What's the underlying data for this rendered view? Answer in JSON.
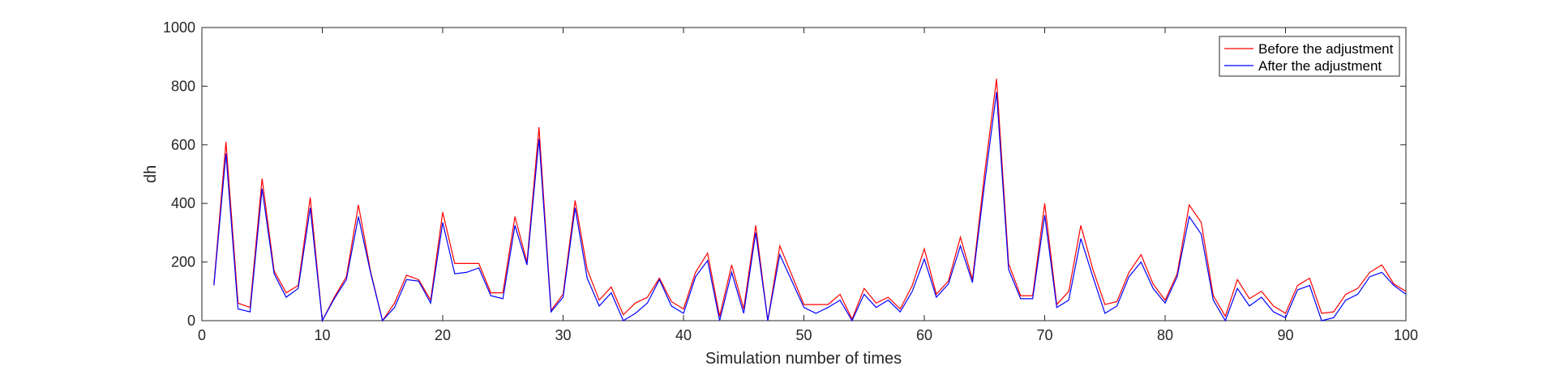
{
  "chart_data": {
    "type": "line",
    "xlabel": "Simulation number of times",
    "ylabel": "dh",
    "xlim": [
      0,
      100
    ],
    "ylim": [
      0,
      1000
    ],
    "xticks": [
      0,
      10,
      20,
      30,
      40,
      50,
      60,
      70,
      80,
      90,
      100
    ],
    "yticks": [
      0,
      200,
      400,
      600,
      800,
      1000
    ],
    "grid": false,
    "legend_position": "top-right",
    "x": [
      1,
      2,
      3,
      4,
      5,
      6,
      7,
      8,
      9,
      10,
      11,
      12,
      13,
      14,
      15,
      16,
      17,
      18,
      19,
      20,
      21,
      22,
      23,
      24,
      25,
      26,
      27,
      28,
      29,
      30,
      31,
      32,
      33,
      34,
      35,
      36,
      37,
      38,
      39,
      40,
      41,
      42,
      43,
      44,
      45,
      46,
      47,
      48,
      49,
      50,
      51,
      52,
      53,
      54,
      55,
      56,
      57,
      58,
      59,
      60,
      61,
      62,
      63,
      64,
      65,
      66,
      67,
      68,
      69,
      70,
      71,
      72,
      73,
      74,
      75,
      76,
      77,
      78,
      79,
      80,
      81,
      82,
      83,
      84,
      85,
      86,
      87,
      88,
      89,
      90,
      91,
      92,
      93,
      94,
      95,
      96,
      97,
      98,
      99,
      100
    ],
    "series": [
      {
        "name": "Before the adjustment",
        "color": "#ff0000",
        "values": [
          125,
          610,
          60,
          45,
          485,
          170,
          95,
          120,
          420,
          0,
          80,
          150,
          395,
          170,
          0,
          60,
          155,
          140,
          70,
          370,
          195,
          195,
          195,
          95,
          95,
          355,
          200,
          660,
          35,
          90,
          410,
          175,
          70,
          115,
          20,
          60,
          80,
          145,
          65,
          40,
          165,
          230,
          15,
          190,
          40,
          325,
          0,
          255,
          155,
          55,
          55,
          55,
          90,
          5,
          110,
          60,
          80,
          40,
          120,
          245,
          90,
          135,
          285,
          140,
          500,
          825,
          195,
          85,
          85,
          400,
          55,
          100,
          325,
          175,
          55,
          65,
          165,
          225,
          125,
          70,
          160,
          395,
          335,
          85,
          15,
          140,
          75,
          100,
          50,
          25,
          120,
          145,
          25,
          30,
          90,
          110,
          165,
          190,
          125,
          100
        ]
      },
      {
        "name": "After the adjustment",
        "color": "#0000ff",
        "values": [
          120,
          570,
          40,
          30,
          450,
          160,
          80,
          110,
          385,
          0,
          75,
          140,
          355,
          165,
          0,
          45,
          140,
          135,
          60,
          335,
          160,
          165,
          180,
          85,
          75,
          325,
          190,
          620,
          30,
          80,
          385,
          145,
          50,
          95,
          0,
          25,
          60,
          140,
          50,
          25,
          150,
          205,
          0,
          165,
          25,
          300,
          0,
          225,
          135,
          45,
          25,
          45,
          70,
          0,
          90,
          45,
          70,
          30,
          100,
          210,
          80,
          125,
          255,
          130,
          465,
          780,
          175,
          75,
          75,
          360,
          45,
          70,
          280,
          150,
          25,
          50,
          150,
          200,
          110,
          60,
          150,
          355,
          295,
          70,
          0,
          110,
          50,
          80,
          30,
          10,
          105,
          120,
          0,
          10,
          70,
          90,
          150,
          165,
          120,
          90
        ]
      }
    ]
  }
}
